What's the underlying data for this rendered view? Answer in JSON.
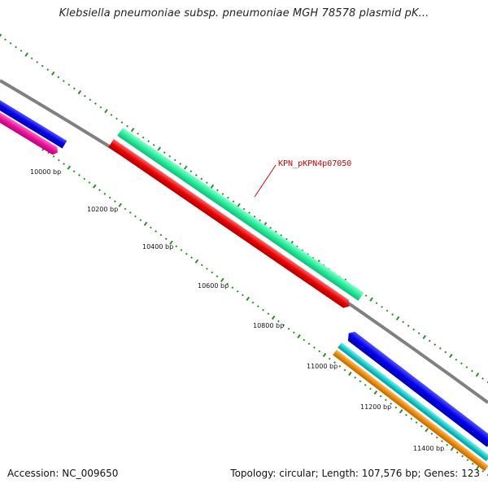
{
  "title": "Klebsiella pneumoniae subsp. pneumoniae MGH 78578 plasmid pK...",
  "gene_label": "KPN_pKPN4p07050",
  "ticks": [
    "10000 bp",
    "10200 bp",
    "10400 bp",
    "10600 bp",
    "10800 bp",
    "11000 bp",
    "11200 bp",
    "11400 bp"
  ],
  "footer": {
    "accession": "Accession: NC_009650",
    "summary": "Topology: circular; Length: 107,576 bp; Genes: 123"
  },
  "colors": {
    "backbone": "#808080",
    "tick": "#2e8b2e",
    "gene_blue": "#0000ee",
    "gene_magenta": "#ee1199",
    "gene_green": "#22ee99",
    "gene_red": "#ee0000",
    "gene_cyan": "#11cccc",
    "gene_orange": "#ee8800",
    "label_red": "#dd0000"
  }
}
